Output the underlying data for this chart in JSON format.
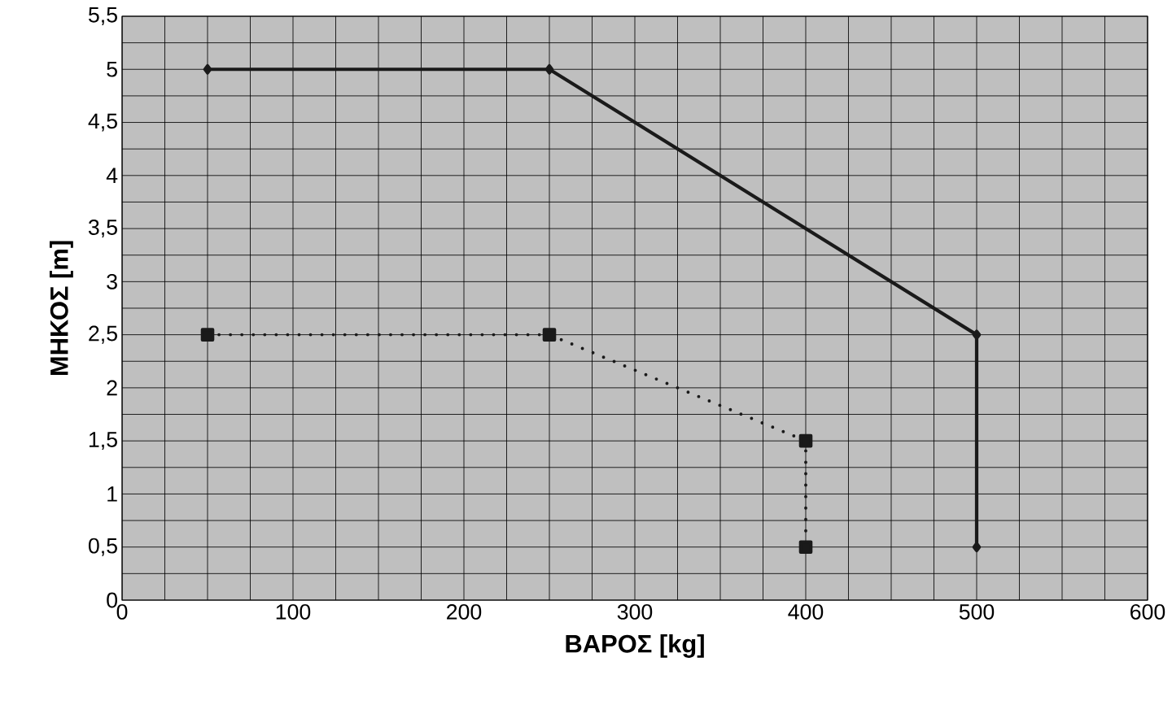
{
  "chart_data": {
    "type": "line",
    "xlabel": "ΒΑΡΟΣ [kg]",
    "ylabel": "ΜΗΚΟΣ [m]",
    "xlim": [
      0,
      600
    ],
    "ylim": [
      0,
      5.5
    ],
    "xticks": [
      0,
      {
        "value": 25,
        "label": null
      },
      {
        "value": 50,
        "label": null
      },
      {
        "value": 75,
        "label": null
      },
      100,
      {
        "value": 125,
        "label": null
      },
      {
        "value": 150,
        "label": null
      },
      {
        "value": 175,
        "label": null
      },
      200,
      {
        "value": 225,
        "label": null
      },
      {
        "value": 250,
        "label": null
      },
      {
        "value": 275,
        "label": null
      },
      300,
      {
        "value": 325,
        "label": null
      },
      {
        "value": 350,
        "label": null
      },
      {
        "value": 375,
        "label": null
      },
      400,
      {
        "value": 425,
        "label": null
      },
      {
        "value": 450,
        "label": null
      },
      {
        "value": 475,
        "label": null
      },
      500,
      {
        "value": 525,
        "label": null
      },
      {
        "value": 550,
        "label": null
      },
      {
        "value": 575,
        "label": null
      },
      600
    ],
    "yticks": [
      0,
      {
        "value": 0.25,
        "label": null
      },
      {
        "value": 0.5,
        "label": "0,5"
      },
      {
        "value": 0.75,
        "label": null
      },
      1,
      {
        "value": 1.25,
        "label": null
      },
      {
        "value": 1.5,
        "label": "1,5"
      },
      {
        "value": 1.75,
        "label": null
      },
      2,
      {
        "value": 2.25,
        "label": null
      },
      {
        "value": 2.5,
        "label": "2,5"
      },
      {
        "value": 2.75,
        "label": null
      },
      3,
      {
        "value": 3.25,
        "label": null
      },
      {
        "value": 3.5,
        "label": "3,5"
      },
      {
        "value": 3.75,
        "label": null
      },
      4,
      {
        "value": 4.25,
        "label": null
      },
      {
        "value": 4.5,
        "label": "4,5"
      },
      {
        "value": 4.75,
        "label": null
      },
      5,
      {
        "value": 5.25,
        "label": null
      },
      {
        "value": 5.5,
        "label": "5,5"
      }
    ],
    "grid": true,
    "series": [
      {
        "color": "#1a1a1a",
        "x": [
          50,
          250,
          500,
          500
        ],
        "values": [
          5,
          5,
          2.5,
          0.5
        ],
        "marker": "diamond",
        "line_style": "solid"
      },
      {
        "color": "#1a1a1a",
        "x": [
          50,
          250,
          400,
          400
        ],
        "values": [
          2.5,
          2.5,
          1.5,
          0.5
        ],
        "marker": "square",
        "line_style": "dotted"
      }
    ]
  }
}
